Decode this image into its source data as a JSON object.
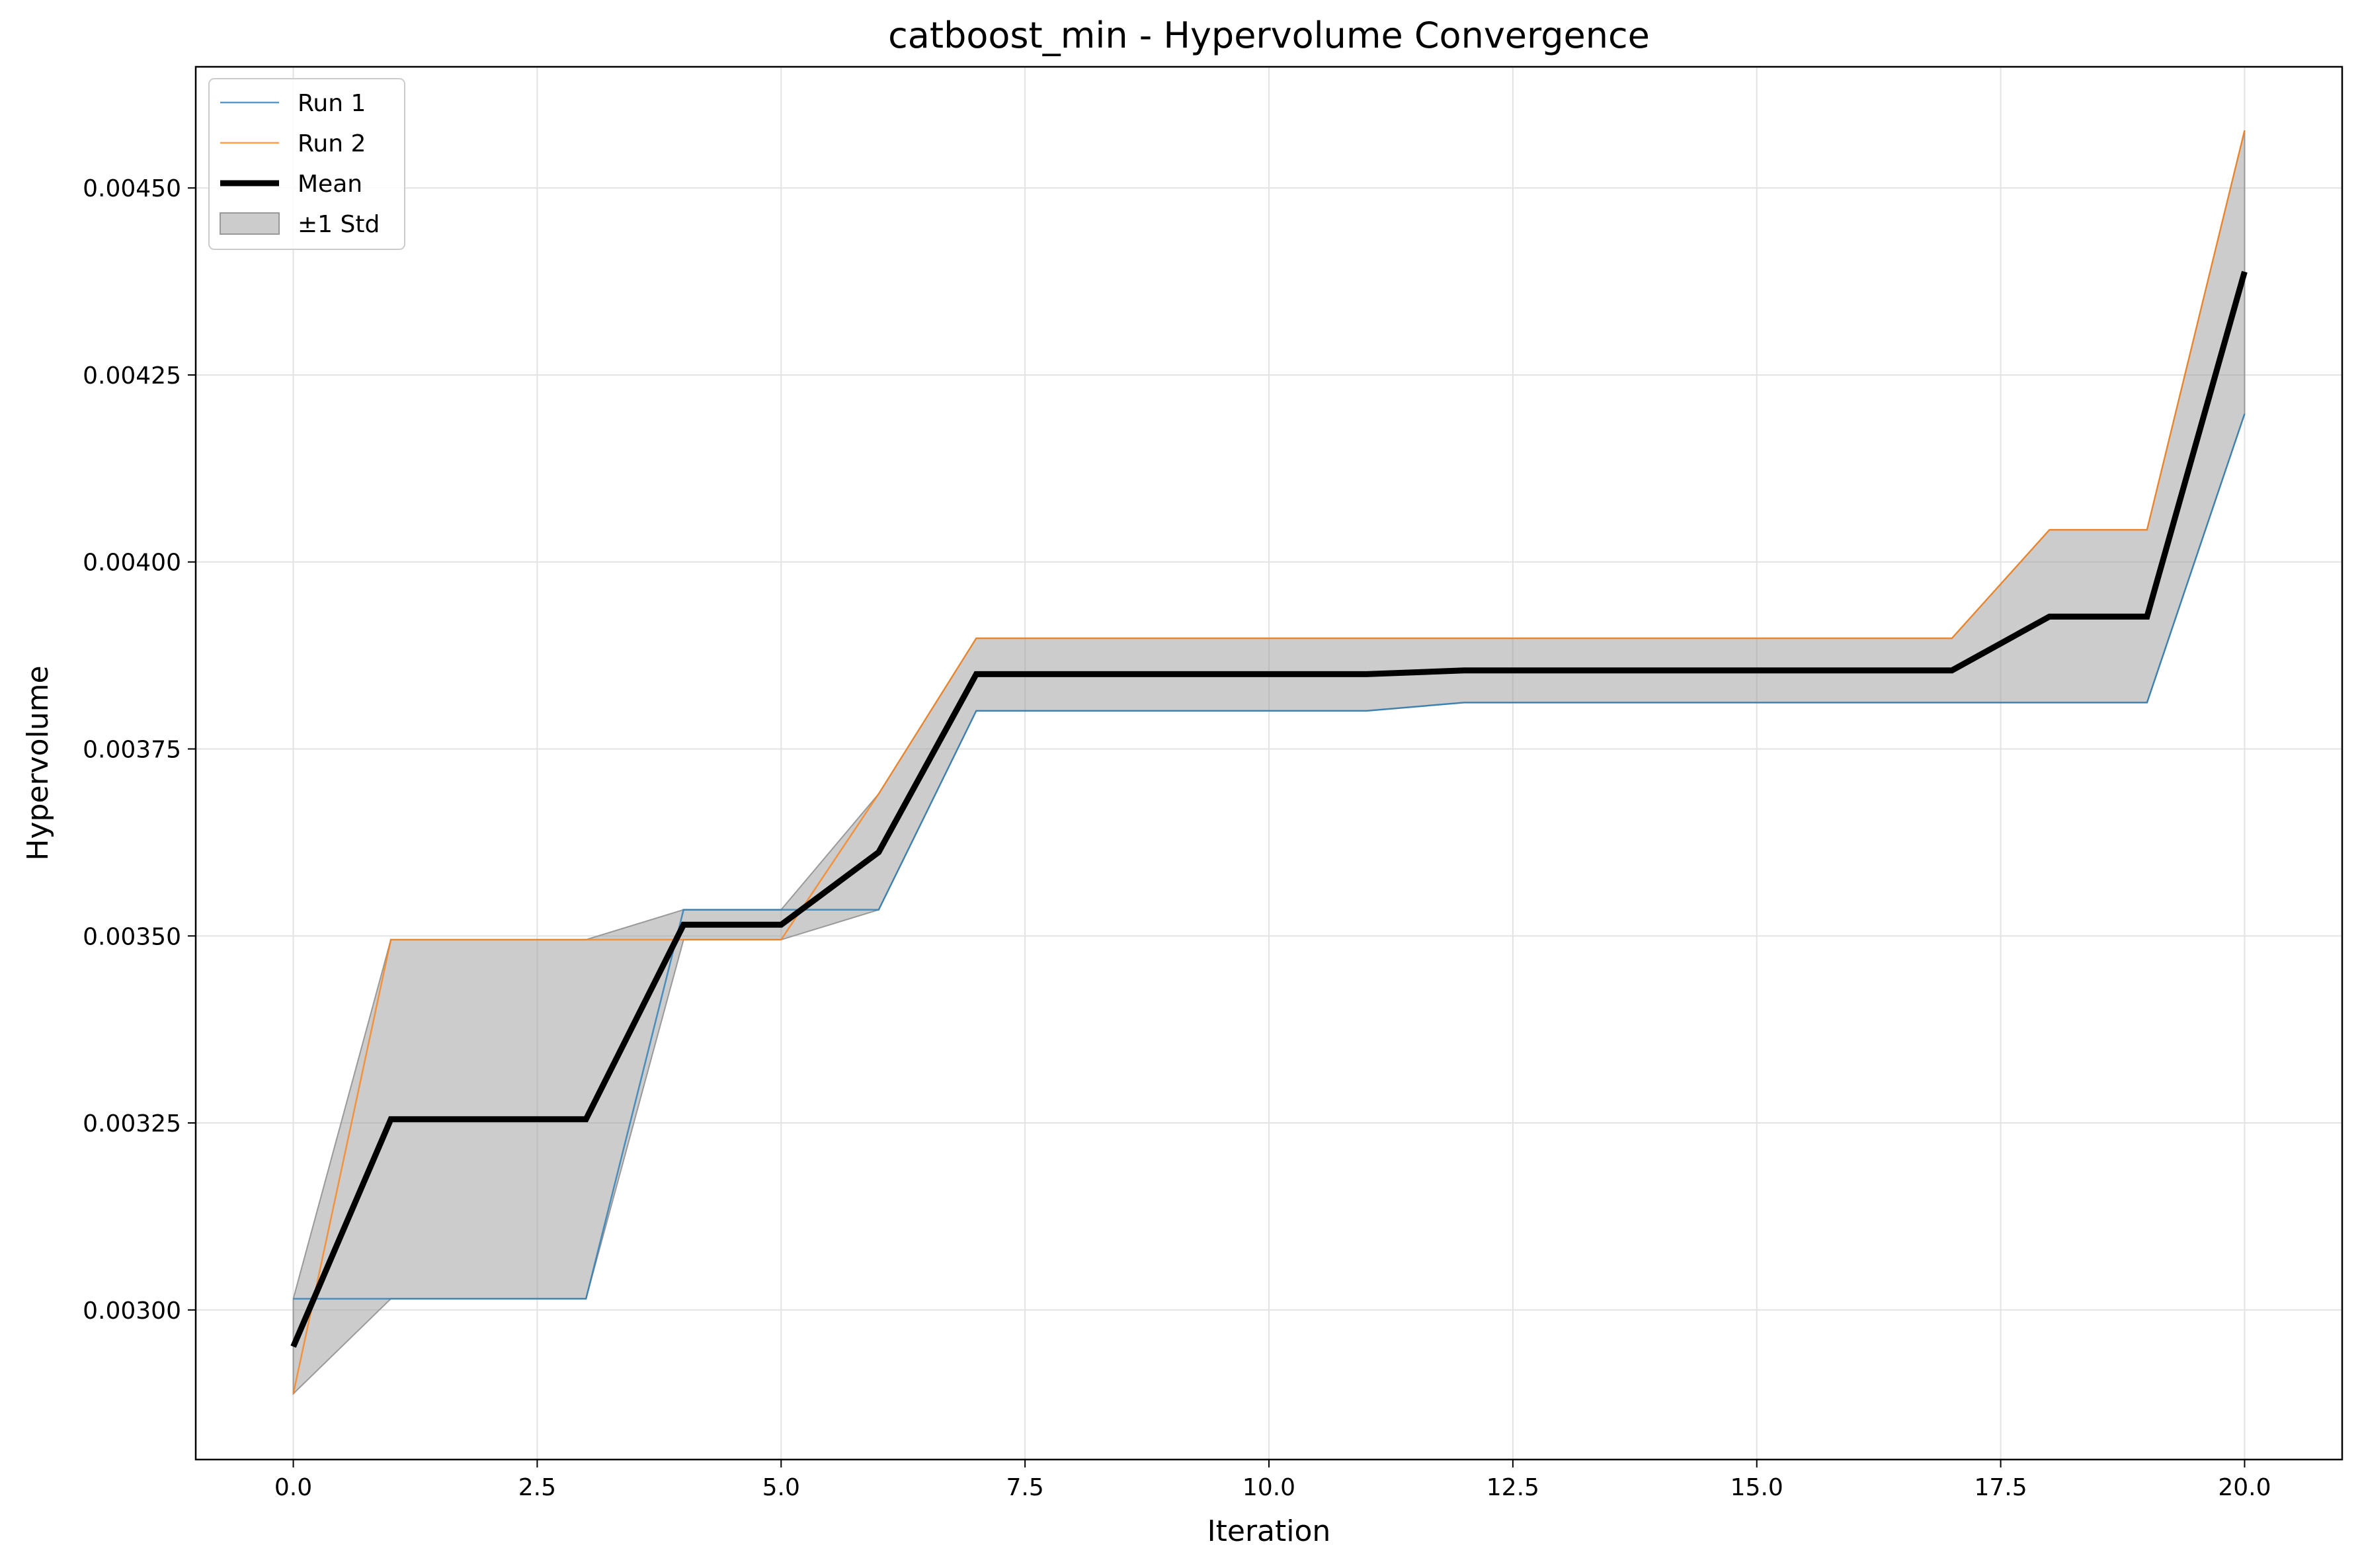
{
  "chart_data": {
    "type": "line",
    "title": "catboost_min - Hypervolume Convergence",
    "xlabel": "Iteration",
    "ylabel": "Hypervolume",
    "xlim": [
      -1.0,
      21.0
    ],
    "ylim": [
      0.0028,
      0.004662
    ],
    "x_ticks": [
      0.0,
      2.5,
      5.0,
      7.5,
      10.0,
      12.5,
      15.0,
      17.5,
      20.0
    ],
    "x_tick_labels": [
      "0.0",
      "2.5",
      "5.0",
      "7.5",
      "10.0",
      "12.5",
      "15.0",
      "17.5",
      "20.0"
    ],
    "y_ticks": [
      0.003,
      0.00325,
      0.0035,
      0.00375,
      0.004,
      0.00425,
      0.0045
    ],
    "y_tick_labels": [
      "0.00300",
      "0.00325",
      "0.00350",
      "0.00375",
      "0.00400",
      "0.00425",
      "0.00450"
    ],
    "grid": true,
    "legend_position": "top-left",
    "x": [
      0,
      1,
      2,
      3,
      4,
      5,
      6,
      7,
      8,
      9,
      10,
      11,
      12,
      13,
      14,
      15,
      16,
      17,
      18,
      19,
      20
    ],
    "series": [
      {
        "name": "Run 1",
        "color": "#1f77b4",
        "values": [
          0.003015,
          0.003015,
          0.003015,
          0.003015,
          0.003535,
          0.003535,
          0.003535,
          0.003801,
          0.003801,
          0.003801,
          0.003801,
          0.003801,
          0.003812,
          0.003812,
          0.003812,
          0.003812,
          0.003812,
          0.003812,
          0.003812,
          0.003812,
          0.004198
        ]
      },
      {
        "name": "Run 2",
        "color": "#ff7f0e",
        "values": [
          0.002888,
          0.003495,
          0.003495,
          0.003495,
          0.003495,
          0.003495,
          0.00369,
          0.003898,
          0.003898,
          0.003898,
          0.003898,
          0.003898,
          0.003898,
          0.003898,
          0.003898,
          0.003898,
          0.003898,
          0.003898,
          0.004043,
          0.004043,
          0.004577
        ]
      }
    ],
    "mean": {
      "name": "Mean",
      "color": "#000000",
      "values": [
        0.002951,
        0.003255,
        0.003255,
        0.003255,
        0.003515,
        0.003515,
        0.003612,
        0.00385,
        0.00385,
        0.00385,
        0.00385,
        0.00385,
        0.003855,
        0.003855,
        0.003855,
        0.003855,
        0.003855,
        0.003855,
        0.003927,
        0.003927,
        0.004388
      ]
    },
    "band": {
      "name": "±1 Std",
      "color": "#999999",
      "lower": [
        0.002888,
        0.003015,
        0.003015,
        0.003015,
        0.003495,
        0.003495,
        0.003535,
        0.003801,
        0.003801,
        0.003801,
        0.003801,
        0.003801,
        0.003812,
        0.003812,
        0.003812,
        0.003812,
        0.003812,
        0.003812,
        0.003812,
        0.003812,
        0.004198
      ],
      "upper": [
        0.003015,
        0.003495,
        0.003495,
        0.003495,
        0.003535,
        0.003535,
        0.00369,
        0.003898,
        0.003898,
        0.003898,
        0.003898,
        0.003898,
        0.003898,
        0.003898,
        0.003898,
        0.003898,
        0.003898,
        0.003898,
        0.004043,
        0.004043,
        0.004577
      ]
    }
  }
}
